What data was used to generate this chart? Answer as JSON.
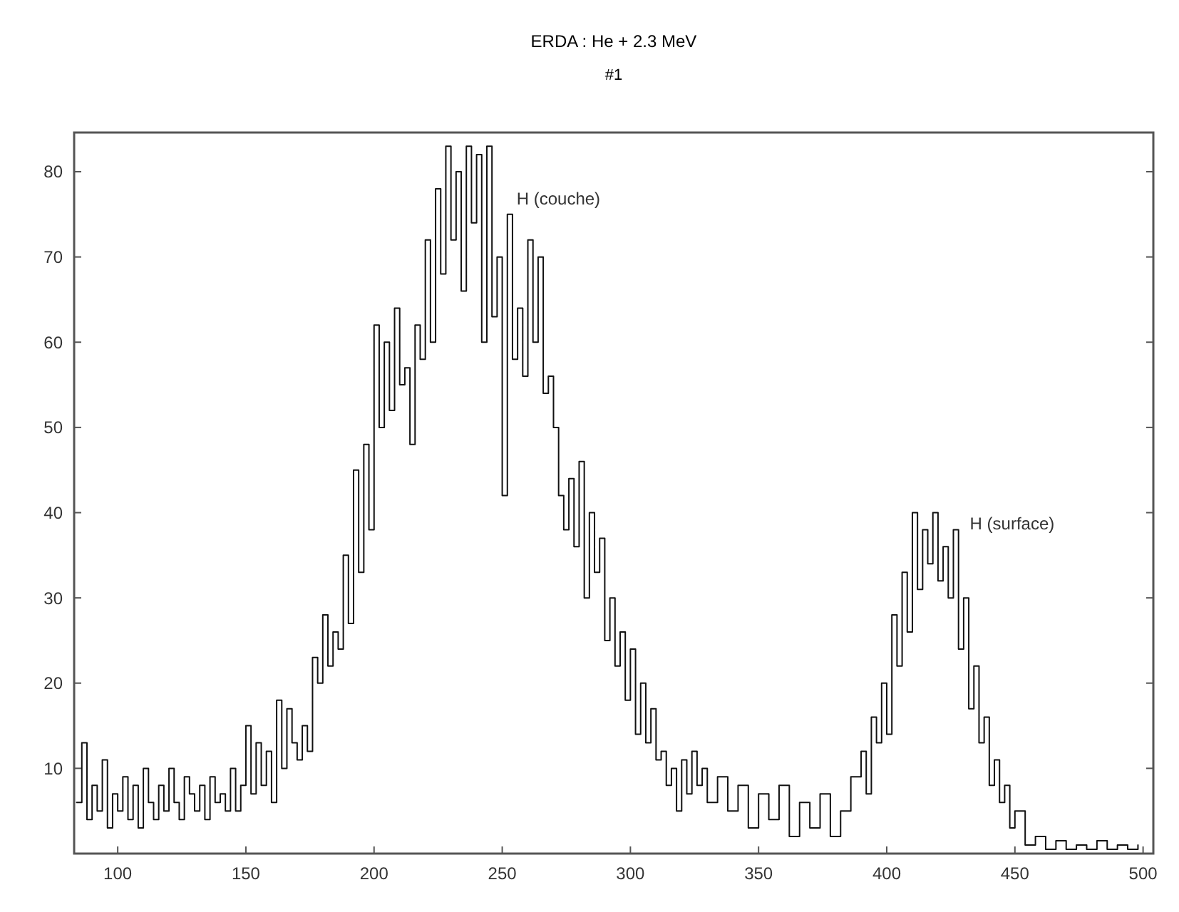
{
  "chart_data": {
    "type": "step",
    "title": "ERDA : He + 2.3 MeV",
    "subtitle": "#1",
    "x": [
      84,
      86,
      88,
      90,
      92,
      94,
      96,
      98,
      100,
      102,
      104,
      106,
      108,
      110,
      112,
      114,
      116,
      118,
      120,
      122,
      124,
      126,
      128,
      130,
      132,
      134,
      136,
      138,
      140,
      142,
      144,
      146,
      148,
      150,
      152,
      154,
      156,
      158,
      160,
      162,
      164,
      166,
      168,
      170,
      172,
      174,
      176,
      178,
      180,
      182,
      184,
      186,
      188,
      190,
      192,
      194,
      196,
      198,
      200,
      202,
      204,
      206,
      208,
      210,
      212,
      214,
      216,
      218,
      220,
      222,
      224,
      226,
      228,
      230,
      232,
      234,
      236,
      238,
      240,
      242,
      244,
      246,
      248,
      250,
      252,
      254,
      256,
      258,
      260,
      262,
      264,
      266,
      268,
      270,
      272,
      274,
      276,
      278,
      280,
      282,
      284,
      286,
      288,
      290,
      292,
      294,
      296,
      298,
      300,
      302,
      304,
      306,
      308,
      310,
      312,
      314,
      316,
      318,
      320,
      322,
      324,
      326,
      328,
      330,
      334,
      338,
      342,
      346,
      350,
      354,
      358,
      362,
      366,
      370,
      374,
      378,
      382,
      386,
      390,
      392,
      394,
      396,
      398,
      400,
      402,
      404,
      406,
      408,
      410,
      412,
      414,
      416,
      418,
      420,
      422,
      424,
      426,
      428,
      430,
      432,
      434,
      436,
      438,
      440,
      442,
      444,
      446,
      448,
      450,
      454,
      458,
      462,
      466,
      470,
      474,
      478,
      482,
      486,
      490,
      494,
      498
    ],
    "series": [
      {
        "color": "#111111",
        "values": [
          6,
          13,
          4,
          8,
          5,
          11,
          3,
          7,
          5,
          9,
          4,
          8,
          3,
          10,
          6,
          4,
          8,
          5,
          10,
          6,
          4,
          9,
          7,
          5,
          8,
          4,
          9,
          6,
          7,
          5,
          10,
          5,
          8,
          15,
          7,
          13,
          8,
          12,
          6,
          18,
          10,
          17,
          13,
          11,
          15,
          12,
          23,
          20,
          28,
          22,
          26,
          24,
          35,
          27,
          45,
          33,
          48,
          38,
          62,
          50,
          60,
          52,
          64,
          55,
          57,
          48,
          62,
          58,
          72,
          60,
          78,
          68,
          83,
          72,
          80,
          66,
          83,
          74,
          82,
          60,
          83,
          63,
          70,
          42,
          75,
          58,
          64,
          56,
          72,
          60,
          70,
          54,
          56,
          50,
          42,
          38,
          44,
          36,
          46,
          30,
          40,
          33,
          37,
          25,
          30,
          22,
          26,
          18,
          24,
          14,
          20,
          13,
          17,
          11,
          12,
          8,
          10,
          5,
          11,
          7,
          12,
          8,
          10,
          6,
          9,
          5,
          8,
          3,
          7,
          4,
          8,
          2,
          6,
          3,
          7,
          2,
          5,
          9,
          12,
          7,
          16,
          13,
          20,
          14,
          28,
          22,
          33,
          26,
          40,
          31,
          38,
          34,
          40,
          32,
          36,
          30,
          38,
          24,
          30,
          17,
          22,
          13,
          16,
          8,
          11,
          6,
          8,
          3,
          5,
          1,
          2,
          0.5,
          1.5,
          0.5,
          1,
          0.5,
          1.5,
          0.5,
          1,
          0.5,
          1
        ]
      }
    ],
    "xlim": [
      83,
      504
    ],
    "ylim": [
      0,
      84.6
    ],
    "xticks": [
      100,
      150,
      200,
      250,
      300,
      350,
      400,
      450,
      500
    ],
    "yticks": [
      10,
      20,
      30,
      40,
      50,
      60,
      70,
      80
    ],
    "grid": false,
    "line_style": "solid",
    "annotations": [
      "H (couche)",
      "H (surface)"
    ]
  }
}
